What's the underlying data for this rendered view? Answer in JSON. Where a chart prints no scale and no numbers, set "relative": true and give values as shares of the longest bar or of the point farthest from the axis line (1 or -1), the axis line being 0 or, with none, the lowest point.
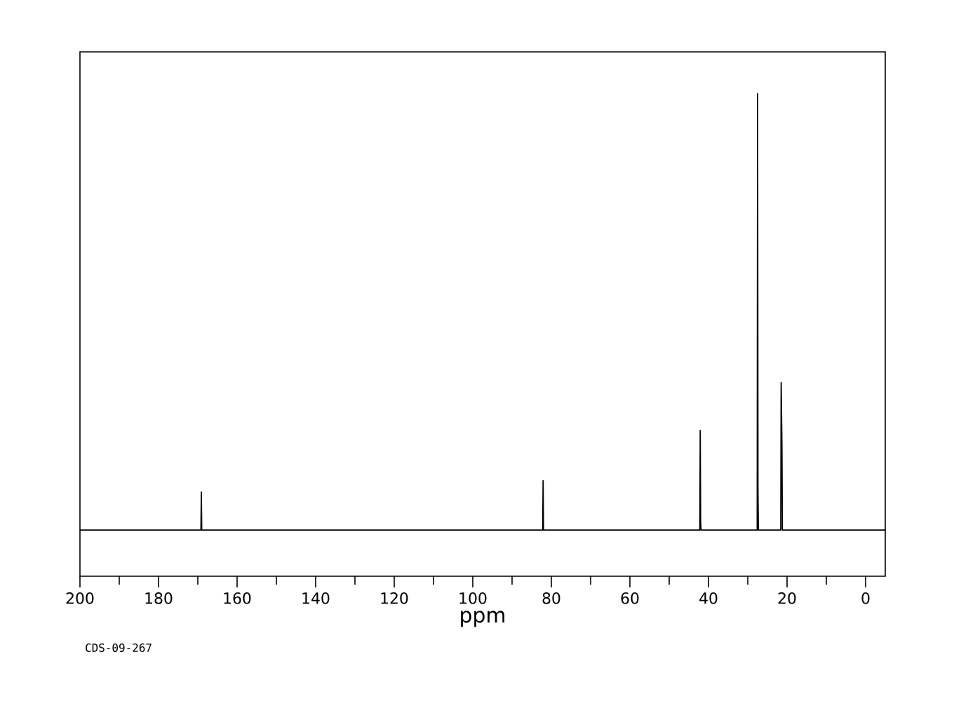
{
  "chart_data": {
    "type": "line",
    "relative": true,
    "xlabel": "ppm",
    "annotations": [
      "CDS-09-267"
    ],
    "color": "#000000",
    "grid": false,
    "marker": "none",
    "line_style": "solid",
    "tick_labels": "x",
    "xlim": [
      200,
      -5
    ],
    "xticks": [
      200,
      180,
      160,
      140,
      120,
      100,
      80,
      60,
      40,
      20,
      0
    ],
    "x": [
      200,
      169.2,
      169.1,
      169.0,
      82.2,
      82.1,
      82.0,
      42.2,
      42.1,
      42.0,
      41.9,
      27.6,
      27.5,
      27.4,
      27.3,
      21.6,
      21.5,
      21.3,
      21.2,
      -5
    ],
    "values": [
      0,
      0,
      0.087,
      0,
      0,
      0.113,
      0,
      0,
      0.228,
      0.02,
      0,
      0,
      1,
      0.087,
      0,
      0,
      0.338,
      0.193,
      0,
      0
    ]
  }
}
